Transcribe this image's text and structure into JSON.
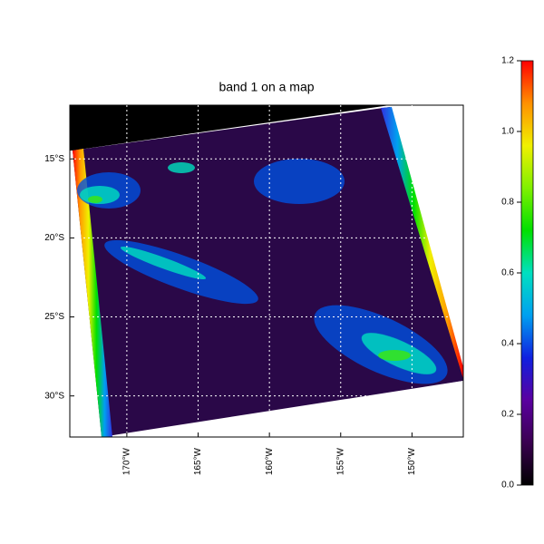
{
  "chart_data": {
    "type": "map",
    "title": "band 1 on a map",
    "xlim": [
      -174,
      -146.4
    ],
    "ylim": [
      -32.6,
      -11.6
    ],
    "xticks": [
      {
        "value": -170,
        "label": "170°W"
      },
      {
        "value": -165,
        "label": "165°W"
      },
      {
        "value": -160,
        "label": "160°W"
      },
      {
        "value": -155,
        "label": "155°W"
      },
      {
        "value": -150,
        "label": "150°W"
      }
    ],
    "yticks": [
      {
        "value": -15,
        "label": "15°S"
      },
      {
        "value": -20,
        "label": "20°S"
      },
      {
        "value": -25,
        "label": "25°S"
      },
      {
        "value": -30,
        "label": "30°S"
      }
    ],
    "grid": true,
    "colorbar": {
      "lim": [
        0,
        1.2
      ],
      "ticks": [
        {
          "value": 0,
          "label": "0.0"
        },
        {
          "value": 0.2,
          "label": "0.2"
        },
        {
          "value": 0.4,
          "label": "0.4"
        },
        {
          "value": 0.6,
          "label": "0.6"
        },
        {
          "value": 0.8,
          "label": "0.8"
        },
        {
          "value": 1,
          "label": "1.0"
        },
        {
          "value": 1.2,
          "label": "1.2"
        }
      ]
    }
  }
}
